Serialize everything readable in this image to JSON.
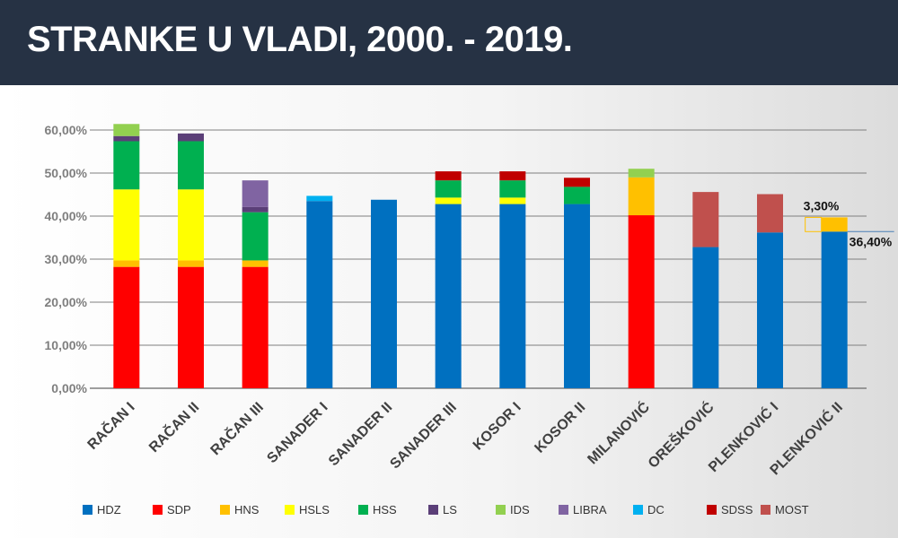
{
  "header": {
    "title": "STRANKE U VLADI, 2000. - 2019."
  },
  "colors": {
    "HDZ": "#0070C0",
    "SDP": "#FF0000",
    "HNS": "#FFC000",
    "HSLS": "#FFFF00",
    "HSS": "#00B050",
    "LS": "#5B3F78",
    "IDS": "#92D050",
    "LIBRA": "#8064A2",
    "DC": "#00B0F0",
    "SDSS": "#C00000",
    "MOST": "#C0504D",
    "header_bg": "#263244",
    "grid": "#7f7f7f",
    "annotation_box": "#FFC000"
  },
  "chart_data": {
    "type": "bar",
    "stacked": true,
    "categories": [
      "RAČAN I",
      "RAČAN II",
      "RAČAN III",
      "SANADER I",
      "SANADER II",
      "SANADER III",
      "KOSOR I",
      "KOSOR II",
      "MILANOVIĆ",
      "OREŠKOVIĆ",
      "PLENKOVIĆ I",
      "PLENKOVIĆ II"
    ],
    "series": [
      {
        "name": "HDZ",
        "values": [
          0,
          0,
          0,
          43.5,
          43.8,
          42.8,
          42.8,
          42.8,
          0,
          32.8,
          36.2,
          36.4
        ]
      },
      {
        "name": "SDP",
        "values": [
          28.2,
          28.2,
          28.2,
          0,
          0,
          0,
          0,
          0,
          40.2,
          0,
          0,
          0
        ]
      },
      {
        "name": "HNS",
        "values": [
          1.5,
          1.5,
          1.5,
          0,
          0,
          0,
          0,
          0,
          8.8,
          0,
          0,
          3.3
        ]
      },
      {
        "name": "HSLS",
        "values": [
          16.5,
          16.5,
          0,
          0,
          0,
          1.5,
          1.5,
          0,
          0,
          0,
          0,
          0
        ]
      },
      {
        "name": "HSS",
        "values": [
          11.2,
          11.2,
          11.2,
          0,
          0,
          4.0,
          4.0,
          4.0,
          0,
          0,
          0,
          0
        ]
      },
      {
        "name": "LS",
        "values": [
          1.2,
          1.8,
          1.2,
          0,
          0,
          0,
          0,
          0,
          0,
          0,
          0,
          0
        ]
      },
      {
        "name": "IDS",
        "values": [
          2.8,
          0,
          0,
          0,
          0,
          0,
          0,
          0,
          2.0,
          0,
          0,
          0
        ]
      },
      {
        "name": "LIBRA",
        "values": [
          0,
          0,
          6.2,
          0,
          0,
          0,
          0,
          0,
          0,
          0,
          0,
          0
        ]
      },
      {
        "name": "DC",
        "values": [
          0,
          0,
          0,
          1.2,
          0,
          0,
          0,
          0,
          0,
          0,
          0,
          0
        ]
      },
      {
        "name": "SDSS",
        "values": [
          0,
          0,
          0,
          0,
          0,
          2.1,
          2.1,
          2.1,
          0,
          0,
          0,
          0
        ]
      },
      {
        "name": "MOST",
        "values": [
          0,
          0,
          0,
          0,
          0,
          0,
          0,
          0,
          0,
          12.8,
          8.9,
          0
        ]
      }
    ],
    "ylim": [
      0,
      60
    ],
    "yticks": [
      "0,00%",
      "10,00%",
      "20,00%",
      "30,00%",
      "40,00%",
      "50,00%",
      "60,00%"
    ],
    "grid": true,
    "legend_position": "bottom",
    "annotations": [
      {
        "category": "PLENKOVIĆ II",
        "series": "HNS",
        "label": "3,30%"
      },
      {
        "category": "PLENKOVIĆ II",
        "series": "HDZ",
        "label": "36,40%"
      }
    ]
  }
}
